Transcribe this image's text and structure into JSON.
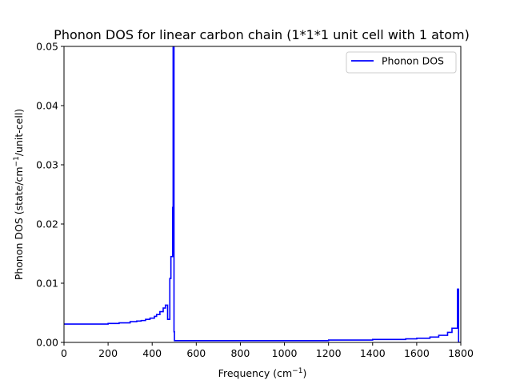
{
  "chart_data": {
    "type": "line",
    "title": "Phonon DOS for linear carbon chain (1*1*1 unit cell with 1 atom)",
    "xlabel": {
      "prefix": "Frequency (cm",
      "sup": "−1",
      "suffix": ")"
    },
    "ylabel": {
      "prefix": "Phonon DOS (state/cm",
      "sup": "−1",
      "suffix": "/unit-cell)"
    },
    "xlim": [
      0,
      1800
    ],
    "ylim": [
      0,
      0.05
    ],
    "x_ticks": [
      0,
      200,
      400,
      600,
      800,
      1000,
      1200,
      1400,
      1600,
      1800
    ],
    "x_tick_labels": [
      "0",
      "200",
      "400",
      "600",
      "800",
      "1000",
      "1200",
      "1400",
      "1600",
      "1800"
    ],
    "y_ticks": [
      0,
      0.01,
      0.02,
      0.03,
      0.04,
      0.05
    ],
    "y_tick_labels": [
      "0.00",
      "0.01",
      "0.02",
      "0.03",
      "0.04",
      "0.05"
    ],
    "grid": false,
    "legend_position": "top-right",
    "series": [
      {
        "name": "Phonon DOS",
        "color": "#0000ff",
        "step": true,
        "x": [
          0,
          100,
          200,
          250,
          300,
          330,
          350,
          370,
          390,
          410,
          420,
          435,
          450,
          460,
          465,
          470,
          475,
          480,
          485,
          490,
          493,
          495,
          497,
          499,
          501,
          503,
          505,
          510,
          600,
          800,
          1000,
          1100,
          1200,
          1300,
          1400,
          1500,
          1550,
          1600,
          1640,
          1660,
          1680,
          1700,
          1720,
          1740,
          1750,
          1760,
          1770,
          1780,
          1785,
          1788,
          1790,
          1800
        ],
        "y": [
          0.0031,
          0.0031,
          0.0032,
          0.0033,
          0.0035,
          0.0036,
          0.0037,
          0.0039,
          0.0041,
          0.0044,
          0.0047,
          0.0052,
          0.0058,
          0.0063,
          0.0063,
          0.0039,
          0.0039,
          0.0108,
          0.0145,
          0.0145,
          0.0228,
          0.05,
          0.05,
          0.0018,
          0.0003,
          0.0003,
          0.0003,
          0.0003,
          0.0003,
          0.0003,
          0.0003,
          0.0003,
          0.0004,
          0.0004,
          0.0005,
          0.0005,
          0.0006,
          0.0007,
          0.0007,
          0.0009,
          0.0009,
          0.0012,
          0.0012,
          0.0017,
          0.0017,
          0.0024,
          0.0024,
          0.0024,
          0.009,
          0.009,
          0.0,
          0.0
        ]
      }
    ]
  }
}
